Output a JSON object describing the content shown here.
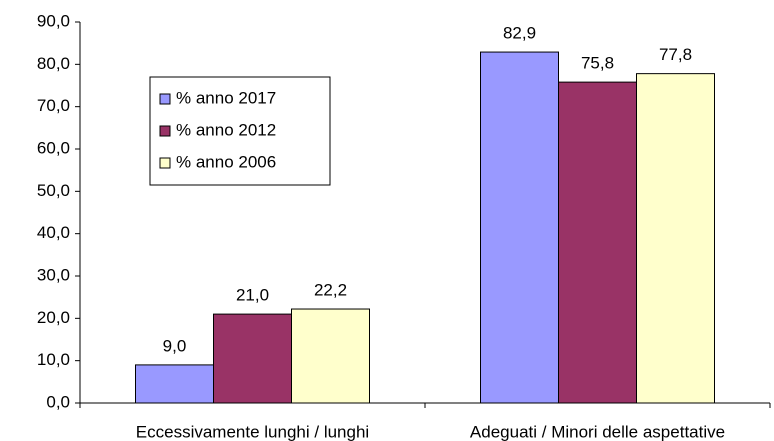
{
  "chart_data": {
    "type": "bar",
    "categories": [
      "Eccessivamente lunghi / lunghi",
      "Adeguati / Minori delle aspettative"
    ],
    "series": [
      {
        "name": "% anno 2017",
        "color": "#9999ff",
        "values": [
          9.0,
          82.9
        ],
        "value_labels": [
          "9,0",
          "82,9"
        ]
      },
      {
        "name": "% anno 2012",
        "color": "#993366",
        "values": [
          21.0,
          75.8
        ],
        "value_labels": [
          "21,0",
          "75,8"
        ]
      },
      {
        "name": "% anno 2006",
        "color": "#ffffcc",
        "values": [
          22.2,
          77.8
        ],
        "value_labels": [
          "22,2",
          "77,8"
        ]
      }
    ],
    "ylim": [
      0,
      90
    ],
    "yticks": [
      {
        "value": 0,
        "label": "0,0"
      },
      {
        "value": 10,
        "label": "10,0"
      },
      {
        "value": 20,
        "label": "20,0"
      },
      {
        "value": 30,
        "label": "30,0"
      },
      {
        "value": 40,
        "label": "40,0"
      },
      {
        "value": 50,
        "label": "50,0"
      },
      {
        "value": 60,
        "label": "60,0"
      },
      {
        "value": 70,
        "label": "70,0"
      },
      {
        "value": 80,
        "label": "80,0"
      },
      {
        "value": 90,
        "label": "90,0"
      }
    ],
    "legend": "upper left"
  }
}
